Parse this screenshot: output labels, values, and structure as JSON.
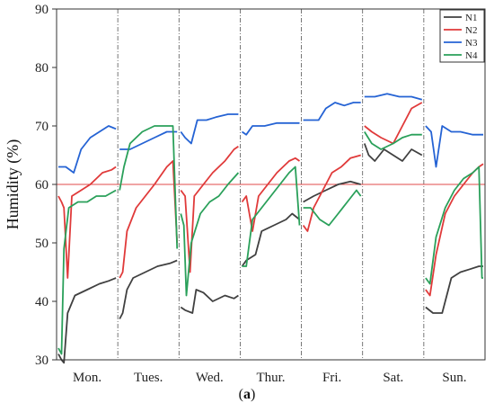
{
  "caption": {
    "open": "(",
    "letter": "a",
    "close": ")"
  },
  "chart_data": {
    "type": "line",
    "ylabel": "Humidity (%)",
    "ylim": [
      30,
      90
    ],
    "yticks": [
      30,
      40,
      50,
      60,
      70,
      80,
      90
    ],
    "categories": [
      "Mon.",
      "Tues.",
      "Wed.",
      "Thur.",
      "Fri.",
      "Sat.",
      "Sun."
    ],
    "legend_position": "top-right",
    "reference_lines": [
      60,
      30
    ],
    "series": [
      {
        "name": "N1",
        "color": "#404040",
        "segments": [
          [
            [
              0.03,
              31
            ],
            [
              0.08,
              30
            ],
            [
              0.12,
              29.5
            ],
            [
              0.18,
              38
            ],
            [
              0.3,
              41
            ],
            [
              0.5,
              42
            ],
            [
              0.7,
              43
            ],
            [
              0.85,
              43.5
            ],
            [
              0.97,
              44
            ]
          ],
          [
            [
              0.03,
              37
            ],
            [
              0.08,
              38
            ],
            [
              0.15,
              42
            ],
            [
              0.25,
              44
            ],
            [
              0.45,
              45
            ],
            [
              0.65,
              46
            ],
            [
              0.85,
              46.5
            ],
            [
              0.97,
              47
            ]
          ],
          [
            [
              0.03,
              39
            ],
            [
              0.1,
              38.5
            ],
            [
              0.22,
              38
            ],
            [
              0.28,
              42
            ],
            [
              0.4,
              41.5
            ],
            [
              0.55,
              40
            ],
            [
              0.75,
              41
            ],
            [
              0.9,
              40.5
            ],
            [
              0.97,
              41
            ]
          ],
          [
            [
              0.03,
              46
            ],
            [
              0.1,
              47
            ],
            [
              0.25,
              48
            ],
            [
              0.35,
              52
            ],
            [
              0.55,
              53
            ],
            [
              0.75,
              54
            ],
            [
              0.85,
              55
            ],
            [
              0.97,
              54
            ]
          ],
          [
            [
              0.03,
              57
            ],
            [
              0.2,
              58
            ],
            [
              0.4,
              59
            ],
            [
              0.6,
              60
            ],
            [
              0.8,
              60.5
            ],
            [
              0.97,
              60
            ]
          ],
          [
            [
              0.03,
              67
            ],
            [
              0.1,
              65
            ],
            [
              0.2,
              64
            ],
            [
              0.35,
              66
            ],
            [
              0.5,
              65
            ],
            [
              0.65,
              64
            ],
            [
              0.8,
              66
            ],
            [
              0.97,
              65
            ]
          ],
          [
            [
              0.03,
              39
            ],
            [
              0.15,
              38
            ],
            [
              0.3,
              38
            ],
            [
              0.45,
              44
            ],
            [
              0.6,
              45
            ],
            [
              0.75,
              45.5
            ],
            [
              0.9,
              46
            ],
            [
              0.97,
              46
            ]
          ]
        ]
      },
      {
        "name": "N2",
        "color": "#e03a3a",
        "segments": [
          [
            [
              0.03,
              58
            ],
            [
              0.08,
              57
            ],
            [
              0.12,
              56
            ],
            [
              0.18,
              44
            ],
            [
              0.25,
              58
            ],
            [
              0.4,
              59
            ],
            [
              0.55,
              60
            ],
            [
              0.75,
              62
            ],
            [
              0.9,
              62.5
            ],
            [
              0.97,
              63
            ]
          ],
          [
            [
              0.03,
              44
            ],
            [
              0.08,
              45
            ],
            [
              0.15,
              52
            ],
            [
              0.3,
              56
            ],
            [
              0.45,
              58
            ],
            [
              0.6,
              60
            ],
            [
              0.8,
              63
            ],
            [
              0.9,
              64
            ],
            [
              0.97,
              50
            ]
          ],
          [
            [
              0.03,
              59
            ],
            [
              0.1,
              58
            ],
            [
              0.18,
              45
            ],
            [
              0.25,
              58
            ],
            [
              0.4,
              60
            ],
            [
              0.55,
              62
            ],
            [
              0.75,
              64
            ],
            [
              0.9,
              66
            ],
            [
              0.97,
              66.5
            ]
          ],
          [
            [
              0.03,
              57
            ],
            [
              0.1,
              58
            ],
            [
              0.2,
              52
            ],
            [
              0.3,
              58
            ],
            [
              0.45,
              60
            ],
            [
              0.6,
              62
            ],
            [
              0.8,
              64
            ],
            [
              0.9,
              64.5
            ],
            [
              0.97,
              64
            ]
          ],
          [
            [
              0.03,
              53
            ],
            [
              0.1,
              52
            ],
            [
              0.2,
              56
            ],
            [
              0.35,
              59
            ],
            [
              0.5,
              62
            ],
            [
              0.65,
              63
            ],
            [
              0.8,
              64.5
            ],
            [
              0.97,
              65
            ]
          ],
          [
            [
              0.03,
              70
            ],
            [
              0.15,
              69
            ],
            [
              0.3,
              68
            ],
            [
              0.5,
              67
            ],
            [
              0.65,
              70
            ],
            [
              0.8,
              73
            ],
            [
              0.97,
              74
            ]
          ],
          [
            [
              0.03,
              42
            ],
            [
              0.1,
              41
            ],
            [
              0.2,
              48
            ],
            [
              0.35,
              55
            ],
            [
              0.5,
              58
            ],
            [
              0.65,
              60
            ],
            [
              0.8,
              62
            ],
            [
              0.9,
              63
            ],
            [
              0.97,
              63.5
            ]
          ]
        ]
      },
      {
        "name": "N3",
        "color": "#2563d4",
        "segments": [
          [
            [
              0.03,
              63
            ],
            [
              0.15,
              63
            ],
            [
              0.28,
              62
            ],
            [
              0.4,
              66
            ],
            [
              0.55,
              68
            ],
            [
              0.7,
              69
            ],
            [
              0.85,
              70
            ],
            [
              0.97,
              69.5
            ]
          ],
          [
            [
              0.03,
              66
            ],
            [
              0.2,
              66
            ],
            [
              0.4,
              67
            ],
            [
              0.6,
              68
            ],
            [
              0.8,
              69
            ],
            [
              0.97,
              69
            ]
          ],
          [
            [
              0.03,
              69
            ],
            [
              0.1,
              68
            ],
            [
              0.2,
              67
            ],
            [
              0.3,
              71
            ],
            [
              0.45,
              71
            ],
            [
              0.6,
              71.5
            ],
            [
              0.8,
              72
            ],
            [
              0.97,
              72
            ]
          ],
          [
            [
              0.03,
              69
            ],
            [
              0.1,
              68.5
            ],
            [
              0.2,
              70
            ],
            [
              0.4,
              70
            ],
            [
              0.6,
              70.5
            ],
            [
              0.8,
              70.5
            ],
            [
              0.97,
              70.5
            ]
          ],
          [
            [
              0.03,
              71
            ],
            [
              0.15,
              71
            ],
            [
              0.28,
              71
            ],
            [
              0.4,
              73
            ],
            [
              0.55,
              74
            ],
            [
              0.7,
              73.5
            ],
            [
              0.85,
              74
            ],
            [
              0.97,
              74
            ]
          ],
          [
            [
              0.03,
              75
            ],
            [
              0.2,
              75
            ],
            [
              0.4,
              75.5
            ],
            [
              0.6,
              75
            ],
            [
              0.8,
              75
            ],
            [
              0.97,
              74.5
            ]
          ],
          [
            [
              0.03,
              70
            ],
            [
              0.12,
              69
            ],
            [
              0.2,
              63
            ],
            [
              0.3,
              70
            ],
            [
              0.45,
              69
            ],
            [
              0.6,
              69
            ],
            [
              0.8,
              68.5
            ],
            [
              0.97,
              68.5
            ]
          ]
        ]
      },
      {
        "name": "N4",
        "color": "#2aa05a",
        "segments": [
          [
            [
              0.03,
              32
            ],
            [
              0.08,
              31
            ],
            [
              0.12,
              49
            ],
            [
              0.2,
              56
            ],
            [
              0.35,
              57
            ],
            [
              0.5,
              57
            ],
            [
              0.65,
              58
            ],
            [
              0.8,
              58
            ],
            [
              0.97,
              59
            ]
          ],
          [
            [
              0.03,
              59
            ],
            [
              0.1,
              63
            ],
            [
              0.2,
              67
            ],
            [
              0.4,
              69
            ],
            [
              0.6,
              70
            ],
            [
              0.8,
              70
            ],
            [
              0.9,
              70
            ],
            [
              0.97,
              49
            ]
          ],
          [
            [
              0.03,
              55
            ],
            [
              0.08,
              53
            ],
            [
              0.12,
              41
            ],
            [
              0.2,
              50
            ],
            [
              0.35,
              55
            ],
            [
              0.5,
              57
            ],
            [
              0.65,
              58
            ],
            [
              0.8,
              60
            ],
            [
              0.97,
              62
            ]
          ],
          [
            [
              0.03,
              46
            ],
            [
              0.1,
              46
            ],
            [
              0.2,
              54
            ],
            [
              0.35,
              56
            ],
            [
              0.5,
              58
            ],
            [
              0.65,
              60
            ],
            [
              0.8,
              62
            ],
            [
              0.9,
              63
            ],
            [
              0.97,
              53
            ]
          ],
          [
            [
              0.03,
              56
            ],
            [
              0.15,
              56
            ],
            [
              0.3,
              54
            ],
            [
              0.45,
              53
            ],
            [
              0.6,
              55
            ],
            [
              0.75,
              57
            ],
            [
              0.9,
              59
            ],
            [
              0.97,
              58
            ]
          ],
          [
            [
              0.03,
              69
            ],
            [
              0.15,
              67
            ],
            [
              0.3,
              66
            ],
            [
              0.5,
              67
            ],
            [
              0.65,
              68
            ],
            [
              0.8,
              68.5
            ],
            [
              0.97,
              68.5
            ]
          ],
          [
            [
              0.03,
              44
            ],
            [
              0.1,
              43
            ],
            [
              0.2,
              51
            ],
            [
              0.35,
              56
            ],
            [
              0.5,
              59
            ],
            [
              0.65,
              61
            ],
            [
              0.8,
              62
            ],
            [
              0.9,
              63
            ],
            [
              0.95,
              44
            ],
            [
              0.97,
              44
            ]
          ]
        ]
      }
    ]
  }
}
